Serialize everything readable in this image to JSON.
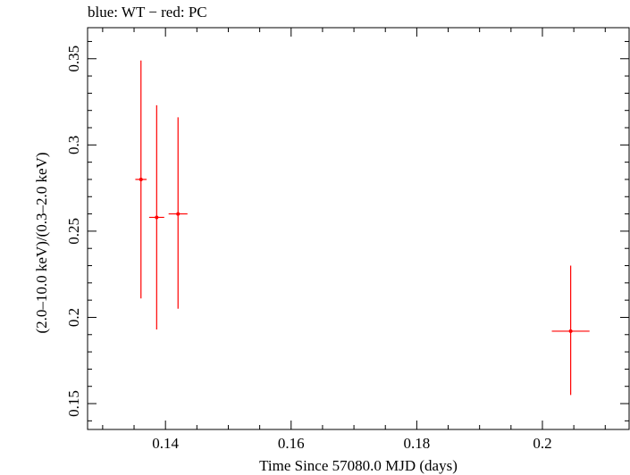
{
  "chart_data": {
    "type": "scatter",
    "title": "blue: WT − red: PC",
    "xlabel": "Time Since 57080.0 MJD (days)",
    "ylabel": "(2.0–10.0 keV)/(0.3–2.0 keV)",
    "xlim": [
      0.1276,
      0.2138
    ],
    "ylim": [
      0.135,
      0.368
    ],
    "x_ticks": [
      0.14,
      0.16,
      0.18,
      0.2
    ],
    "x_tick_labels": [
      "0.14",
      "0.16",
      "0.18",
      "0.2"
    ],
    "y_ticks": [
      0.15,
      0.2,
      0.25,
      0.3,
      0.35
    ],
    "y_tick_labels": [
      "0.15",
      "0.2",
      "0.25",
      "0.3",
      "0.35"
    ],
    "grid": false,
    "series": [
      {
        "color": "#ff0000",
        "points": [
          {
            "x": 0.1361,
            "y": 0.28,
            "xerr": 0.0009,
            "ylo": 0.211,
            "yhi": 0.349
          },
          {
            "x": 0.1386,
            "y": 0.258,
            "xerr": 0.0012,
            "ylo": 0.193,
            "yhi": 0.323
          },
          {
            "x": 0.142,
            "y": 0.26,
            "xerr": 0.0015,
            "ylo": 0.205,
            "yhi": 0.316
          },
          {
            "x": 0.2045,
            "y": 0.192,
            "xerr": 0.003,
            "ylo": 0.155,
            "yhi": 0.23
          }
        ]
      }
    ]
  }
}
